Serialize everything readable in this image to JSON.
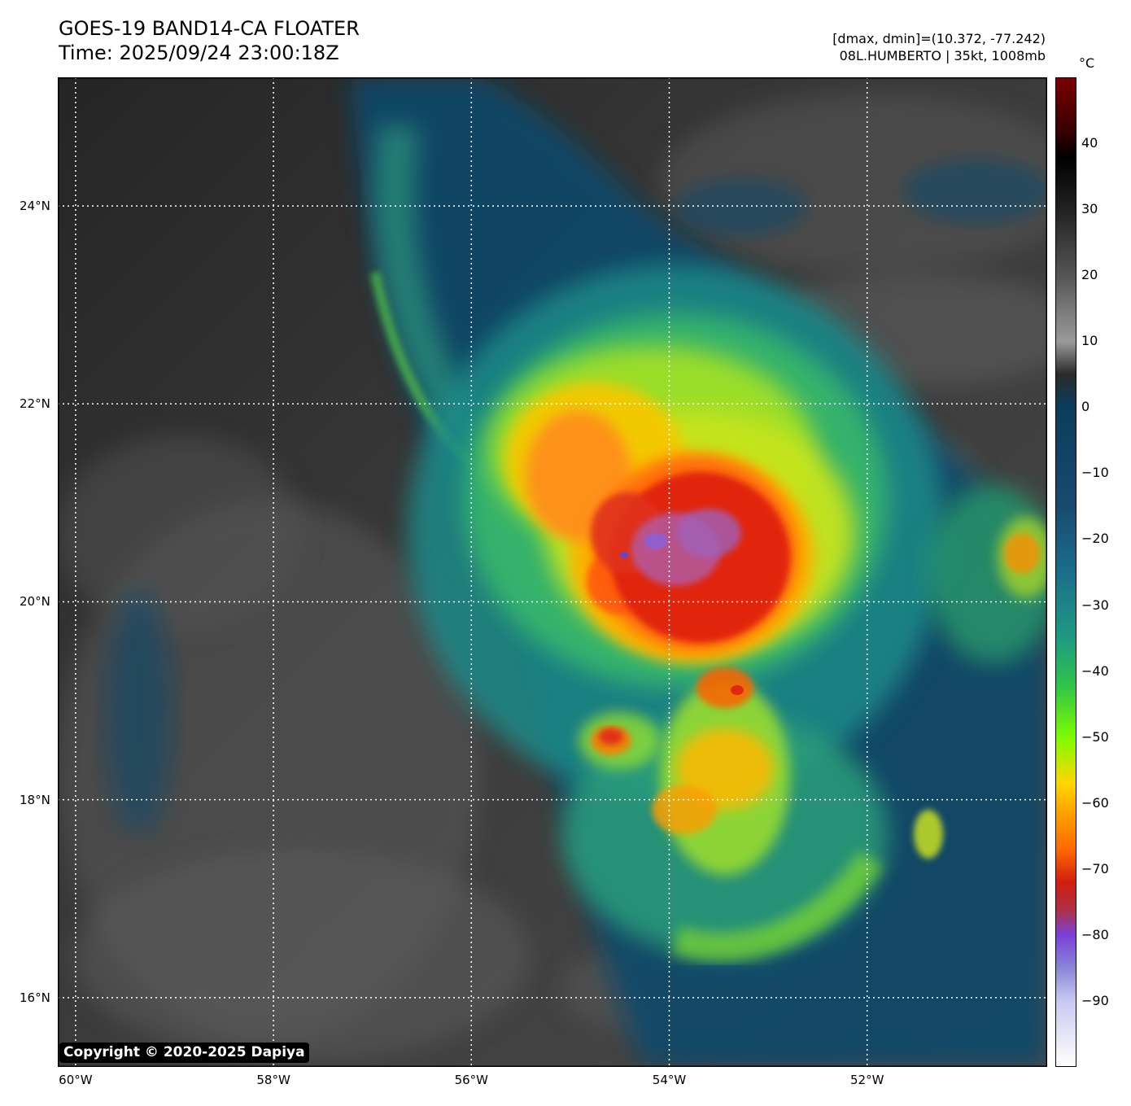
{
  "header": {
    "title": "GOES-19 BAND14-CA FLOATER",
    "time": "Time: 2025/09/24 23:00:18Z",
    "dmax_dmin": "[dmax, dmin]=(10.372, -77.242)",
    "storm": "08L.HUMBERTO | 35kt, 1008mb"
  },
  "map": {
    "lat_labels": [
      {
        "label": "24°N",
        "value": 24
      },
      {
        "label": "22°N",
        "value": 22
      },
      {
        "label": "20°N",
        "value": 20
      },
      {
        "label": "18°N",
        "value": 18
      },
      {
        "label": "16°N",
        "value": 16
      }
    ],
    "lon_labels": [
      {
        "label": "60°W",
        "value": -60
      },
      {
        "label": "58°W",
        "value": -58
      },
      {
        "label": "56°W",
        "value": -56
      },
      {
        "label": "54°W",
        "value": -54
      },
      {
        "label": "52°W",
        "value": -52
      }
    ],
    "lat_range": [
      15.3,
      25.3
    ],
    "lon_range": [
      -60.18,
      -50.18
    ],
    "storm_center": {
      "lat": 20.4,
      "lon": -53.8
    },
    "gridlines": "dotted white"
  },
  "copyright": "Copyright © 2020-2025 Dapiya",
  "colorbar": {
    "unit": "°C",
    "ticks": [
      "40",
      "30",
      "20",
      "10",
      "0",
      "−10",
      "−20",
      "−30",
      "−40",
      "−50",
      "−60",
      "−70",
      "−80",
      "−90"
    ],
    "tick_values": [
      40,
      30,
      20,
      10,
      0,
      -10,
      -20,
      -30,
      -40,
      -50,
      -60,
      -70,
      -80,
      -90
    ],
    "range": [
      -100,
      50
    ],
    "colors": [
      "#ffffff",
      "#8a85d8",
      "#7b3fd6",
      "#d21e0e",
      "#ff8c00",
      "#ffd700",
      "#7cfc00",
      "#2e9e6e",
      "#0f5a7a",
      "#0b3d5c",
      "#1a1a1a",
      "#7a7a7a",
      "#000000",
      "#7a0000"
    ]
  }
}
